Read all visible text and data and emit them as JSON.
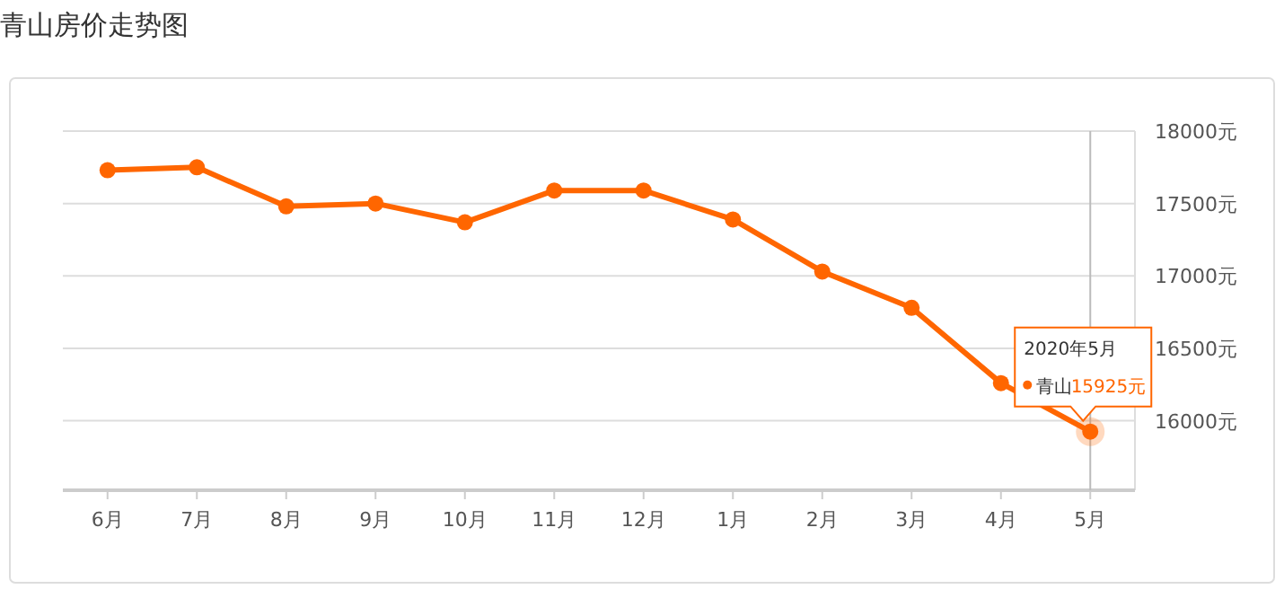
{
  "chart_data": {
    "type": "line",
    "title": "青山房价走势图",
    "categories": [
      "6月",
      "7月",
      "8月",
      "9月",
      "10月",
      "11月",
      "12月",
      "1月",
      "2月",
      "3月",
      "4月",
      "5月"
    ],
    "series": [
      {
        "name": "青山",
        "color": "#ff6600",
        "values": [
          17730,
          17750,
          17480,
          17500,
          17370,
          17590,
          17590,
          17390,
          17030,
          16780,
          16260,
          15925
        ],
        "value_labels": [
          null,
          null,
          null,
          null,
          null,
          null,
          null,
          null,
          null,
          null,
          null,
          "15925元"
        ]
      }
    ],
    "ylim": [
      15520,
      18000
    ],
    "yticks": [
      {
        "value": 16000,
        "label": "16000元"
      },
      {
        "value": 16500,
        "label": "16500元"
      },
      {
        "value": 17000,
        "label": "17000元"
      },
      {
        "value": 17500,
        "label": "17500元"
      },
      {
        "value": 18000,
        "label": "18000元"
      }
    ],
    "grid": "y",
    "marker": "circle",
    "line_style": "solid",
    "annotations": [
      "2020年5月"
    ],
    "ref_lines": [
      {
        "axis": "x",
        "value": "5月",
        "color": "#bbbbbb"
      }
    ]
  }
}
